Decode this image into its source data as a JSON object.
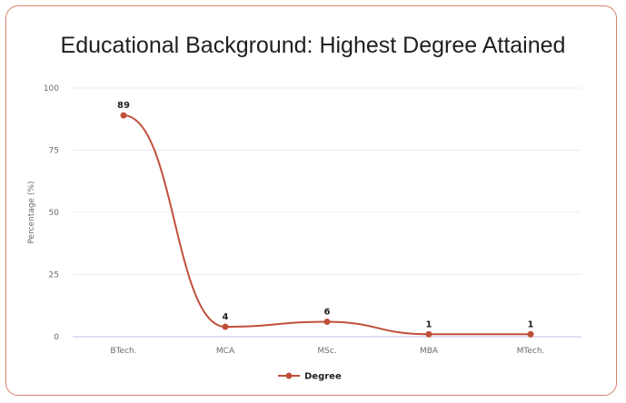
{
  "chart_data": {
    "type": "line",
    "title": "Educational Background: Highest Degree Attained",
    "xlabel": "",
    "ylabel": "Percentage (%)",
    "categories": [
      "BTech.",
      "MCA",
      "MSc.",
      "MBA",
      "MTech."
    ],
    "series": [
      {
        "name": "Degree",
        "values": [
          89,
          4,
          6,
          1,
          1
        ],
        "color": "#c0503a"
      }
    ],
    "ylim": [
      0,
      100
    ],
    "yticks": [
      0,
      25,
      50,
      75,
      100
    ],
    "grid": true,
    "legend": "bottom-center",
    "smooth": true
  },
  "colors": {
    "card_border": "#d9826a",
    "line": "#c0503a",
    "grid": "#ececf2",
    "baseline": "#d8d4ec"
  }
}
